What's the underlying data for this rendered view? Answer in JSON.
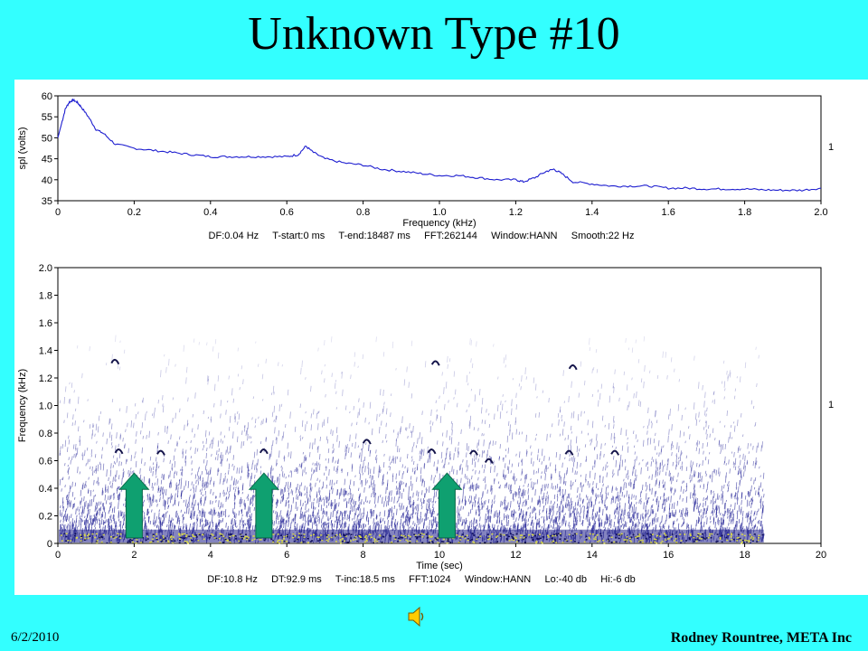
{
  "slide": {
    "title": "Unknown Type #10",
    "date": "6/2/2010",
    "author": "Rodney Rountree, META Inc",
    "background_color": "#33ffff",
    "audio_icon": "speaker-icon"
  },
  "chart_data": [
    {
      "type": "line",
      "xlabel": "Frequency (kHz)",
      "ylabel": "spl (volts)",
      "xlim": [
        0,
        2.0
      ],
      "ylim": [
        35,
        60
      ],
      "x_ticks": [
        "0",
        "0.2",
        "0.4",
        "0.6",
        "0.8",
        "1.0",
        "1.2",
        "1.4",
        "1.6",
        "1.8",
        "2.0"
      ],
      "y_ticks": [
        "35",
        "40",
        "45",
        "50",
        "55",
        "60"
      ],
      "channel_label": "1",
      "info": "DF:0.04 Hz     T-start:0 ms     T-end:18487 ms     FFT:262144     Window:HANN     Smooth:22 Hz",
      "line_color": "#1f1fd0",
      "x": [
        0,
        0.01,
        0.02,
        0.03,
        0.04,
        0.05,
        0.06,
        0.08,
        0.1,
        0.12,
        0.15,
        0.2,
        0.25,
        0.3,
        0.35,
        0.4,
        0.45,
        0.5,
        0.55,
        0.6,
        0.63,
        0.65,
        0.67,
        0.7,
        0.75,
        0.8,
        0.85,
        0.9,
        0.95,
        1.0,
        1.05,
        1.1,
        1.15,
        1.2,
        1.22,
        1.25,
        1.28,
        1.3,
        1.32,
        1.35,
        1.4,
        1.45,
        1.5,
        1.55,
        1.6,
        1.65,
        1.7,
        1.75,
        1.8,
        1.85,
        1.9,
        1.95,
        2.0
      ],
      "y": [
        50,
        53.5,
        57,
        58.5,
        59,
        58.5,
        57.5,
        55,
        52,
        51,
        48.5,
        47.5,
        47,
        46.5,
        46,
        45.5,
        45.5,
        45.5,
        45.5,
        45.5,
        46,
        48,
        46.5,
        45,
        44,
        43.5,
        42.5,
        42,
        41.5,
        41,
        41,
        40.5,
        40,
        40,
        39.5,
        40.5,
        42,
        42.5,
        41.5,
        39.5,
        39,
        38.5,
        38.5,
        38.5,
        38,
        38,
        37.8,
        37.8,
        37.8,
        37.6,
        37.5,
        37.5,
        38
      ]
    },
    {
      "type": "heatmap",
      "xlabel": "Time (sec)",
      "ylabel": "Frequency (kHz)",
      "xlim": [
        0,
        20
      ],
      "ylim": [
        0,
        2.0
      ],
      "x_ticks": [
        "0",
        "2",
        "4",
        "6",
        "8",
        "10",
        "12",
        "14",
        "16",
        "18",
        "20"
      ],
      "y_ticks": [
        "0",
        "0.2",
        "0.4",
        "0.6",
        "0.8",
        "1.0",
        "1.2",
        "1.4",
        "1.6",
        "1.8",
        "2.0"
      ],
      "channel_label": "1",
      "info": "DF:10.8 Hz     DT:92.9 ms     T-inc:18.5 ms     FFT:1024     Window:HANN     Lo:-40 db     Hi:-6 db",
      "data_time_extent": 18.5,
      "noise_color": "#2a2a9a",
      "low_band_color": "#d8d84a",
      "events": [
        {
          "t": 1.6,
          "f": 0.67
        },
        {
          "t": 2.7,
          "f": 0.66
        },
        {
          "t": 5.4,
          "f": 0.67
        },
        {
          "t": 8.1,
          "f": 0.74
        },
        {
          "t": 9.8,
          "f": 0.67
        },
        {
          "t": 10.9,
          "f": 0.66
        },
        {
          "t": 11.3,
          "f": 0.6
        },
        {
          "t": 13.4,
          "f": 0.66
        },
        {
          "t": 14.6,
          "f": 0.66
        },
        {
          "t": 1.5,
          "f": 1.32
        },
        {
          "t": 9.9,
          "f": 1.31
        },
        {
          "t": 13.5,
          "f": 1.28
        }
      ],
      "arrows": [
        {
          "t": 2.0,
          "f": 0.22
        },
        {
          "t": 5.4,
          "f": 0.22
        },
        {
          "t": 10.2,
          "f": 0.22
        }
      ],
      "arrow_color": "#0fa070"
    }
  ]
}
